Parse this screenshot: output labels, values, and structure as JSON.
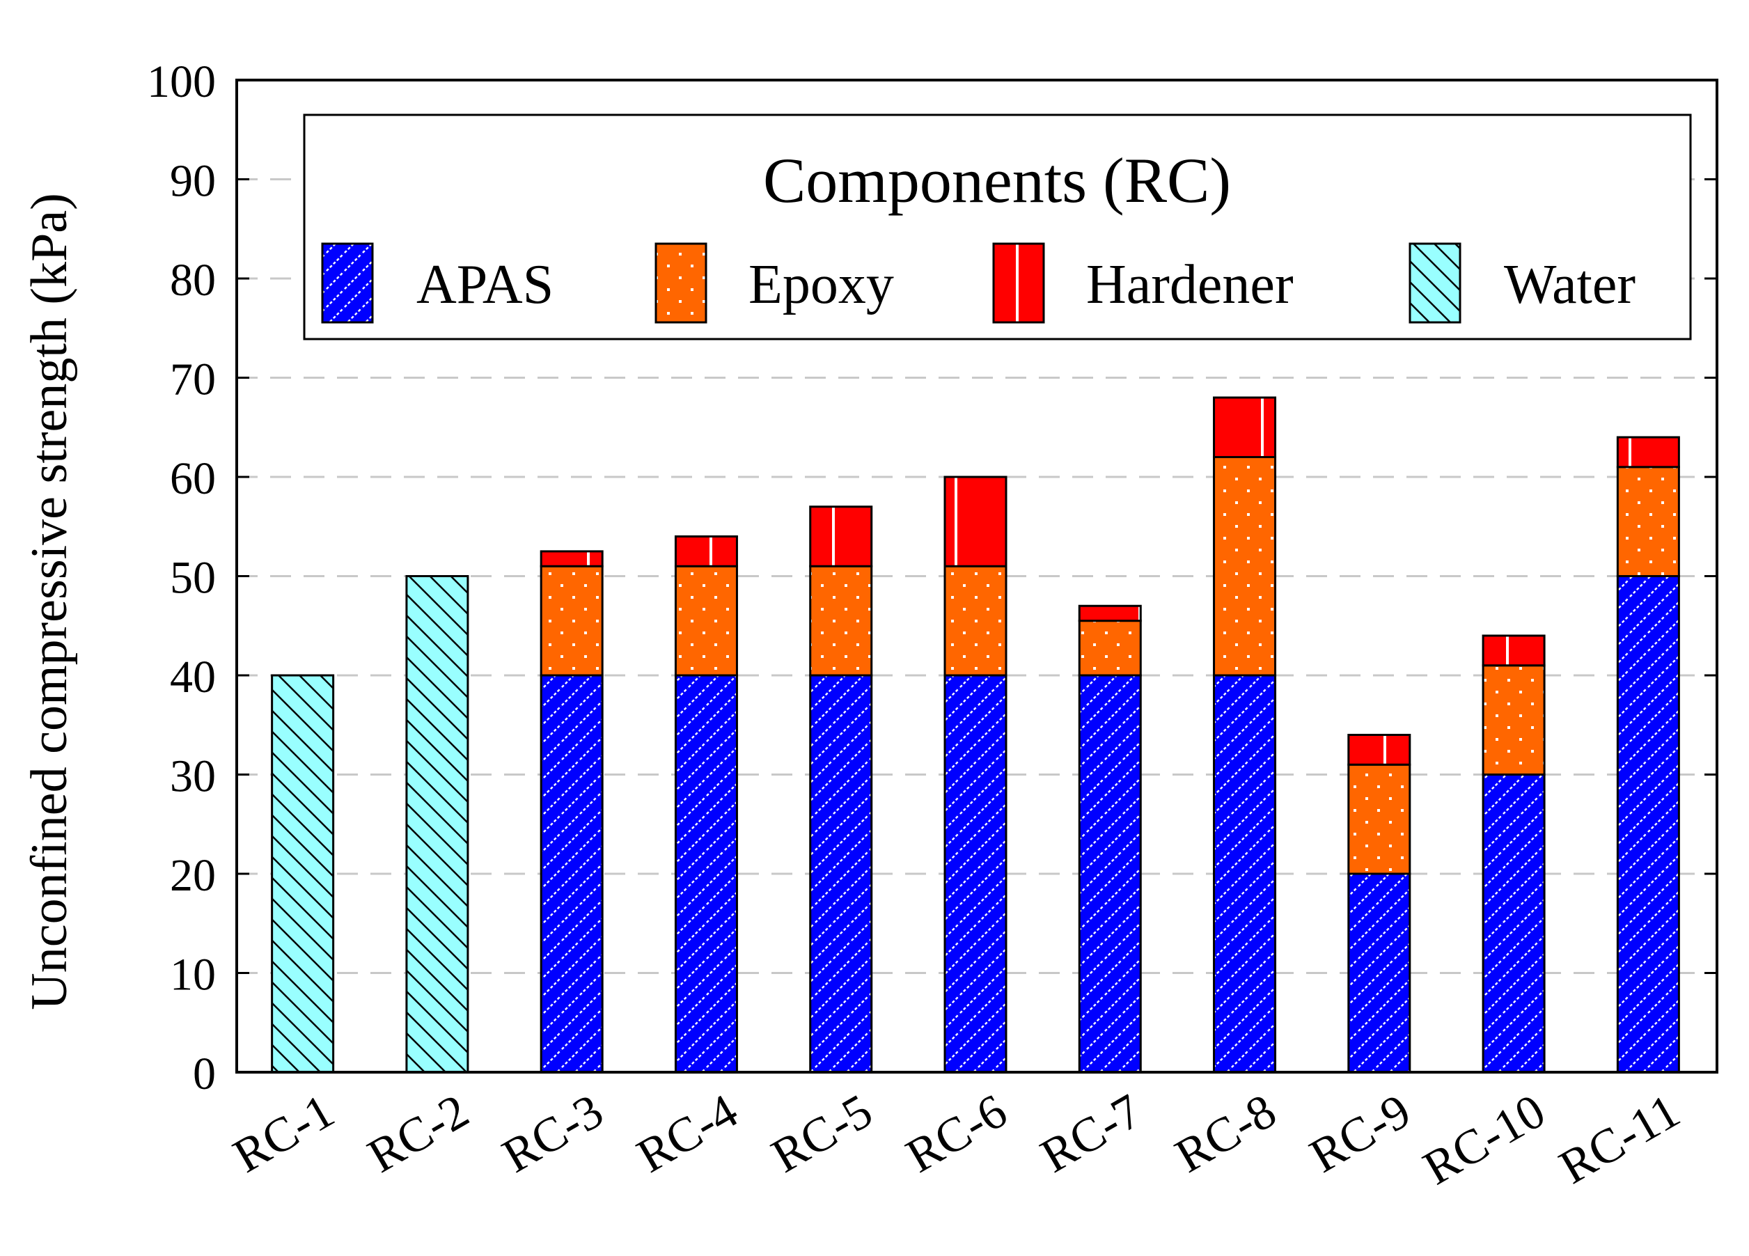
{
  "chart_data": {
    "type": "stacked-bar",
    "title": "",
    "xlabel": "",
    "ylabel": "Unconfined compressive strength (kPa)",
    "ylim": [
      0,
      100
    ],
    "yticks": [
      0,
      10,
      20,
      30,
      40,
      50,
      60,
      70,
      80,
      90,
      100
    ],
    "grid": "horizontal-dashed",
    "legend": {
      "title": "Components (RC)",
      "placement": "top",
      "entries": [
        "APAS",
        "Epoxy",
        "Hardener",
        "Water"
      ]
    },
    "categories": [
      "RC-1",
      "RC-2",
      "RC-3",
      "RC-4",
      "RC-5",
      "RC-6",
      "RC-7",
      "RC-8",
      "RC-9",
      "RC-10",
      "RC-11"
    ],
    "series": [
      {
        "name": "Water",
        "key": "water",
        "color": "#99ffff",
        "values": [
          40,
          50,
          0,
          0,
          0,
          0,
          0,
          0,
          0,
          0,
          0
        ]
      },
      {
        "name": "APAS",
        "key": "apas",
        "color": "#0000ff",
        "values": [
          0,
          0,
          40,
          40,
          40,
          40,
          40,
          40,
          20,
          30,
          50
        ]
      },
      {
        "name": "Epoxy",
        "key": "epoxy",
        "color": "#ff6600",
        "values": [
          0,
          0,
          11,
          11,
          11,
          11,
          5.5,
          22,
          11,
          11,
          11
        ]
      },
      {
        "name": "Hardener",
        "key": "hardener",
        "color": "#ff0000",
        "values": [
          0,
          0,
          1.5,
          3,
          6,
          9,
          1.5,
          6,
          3,
          3,
          3
        ]
      }
    ]
  }
}
